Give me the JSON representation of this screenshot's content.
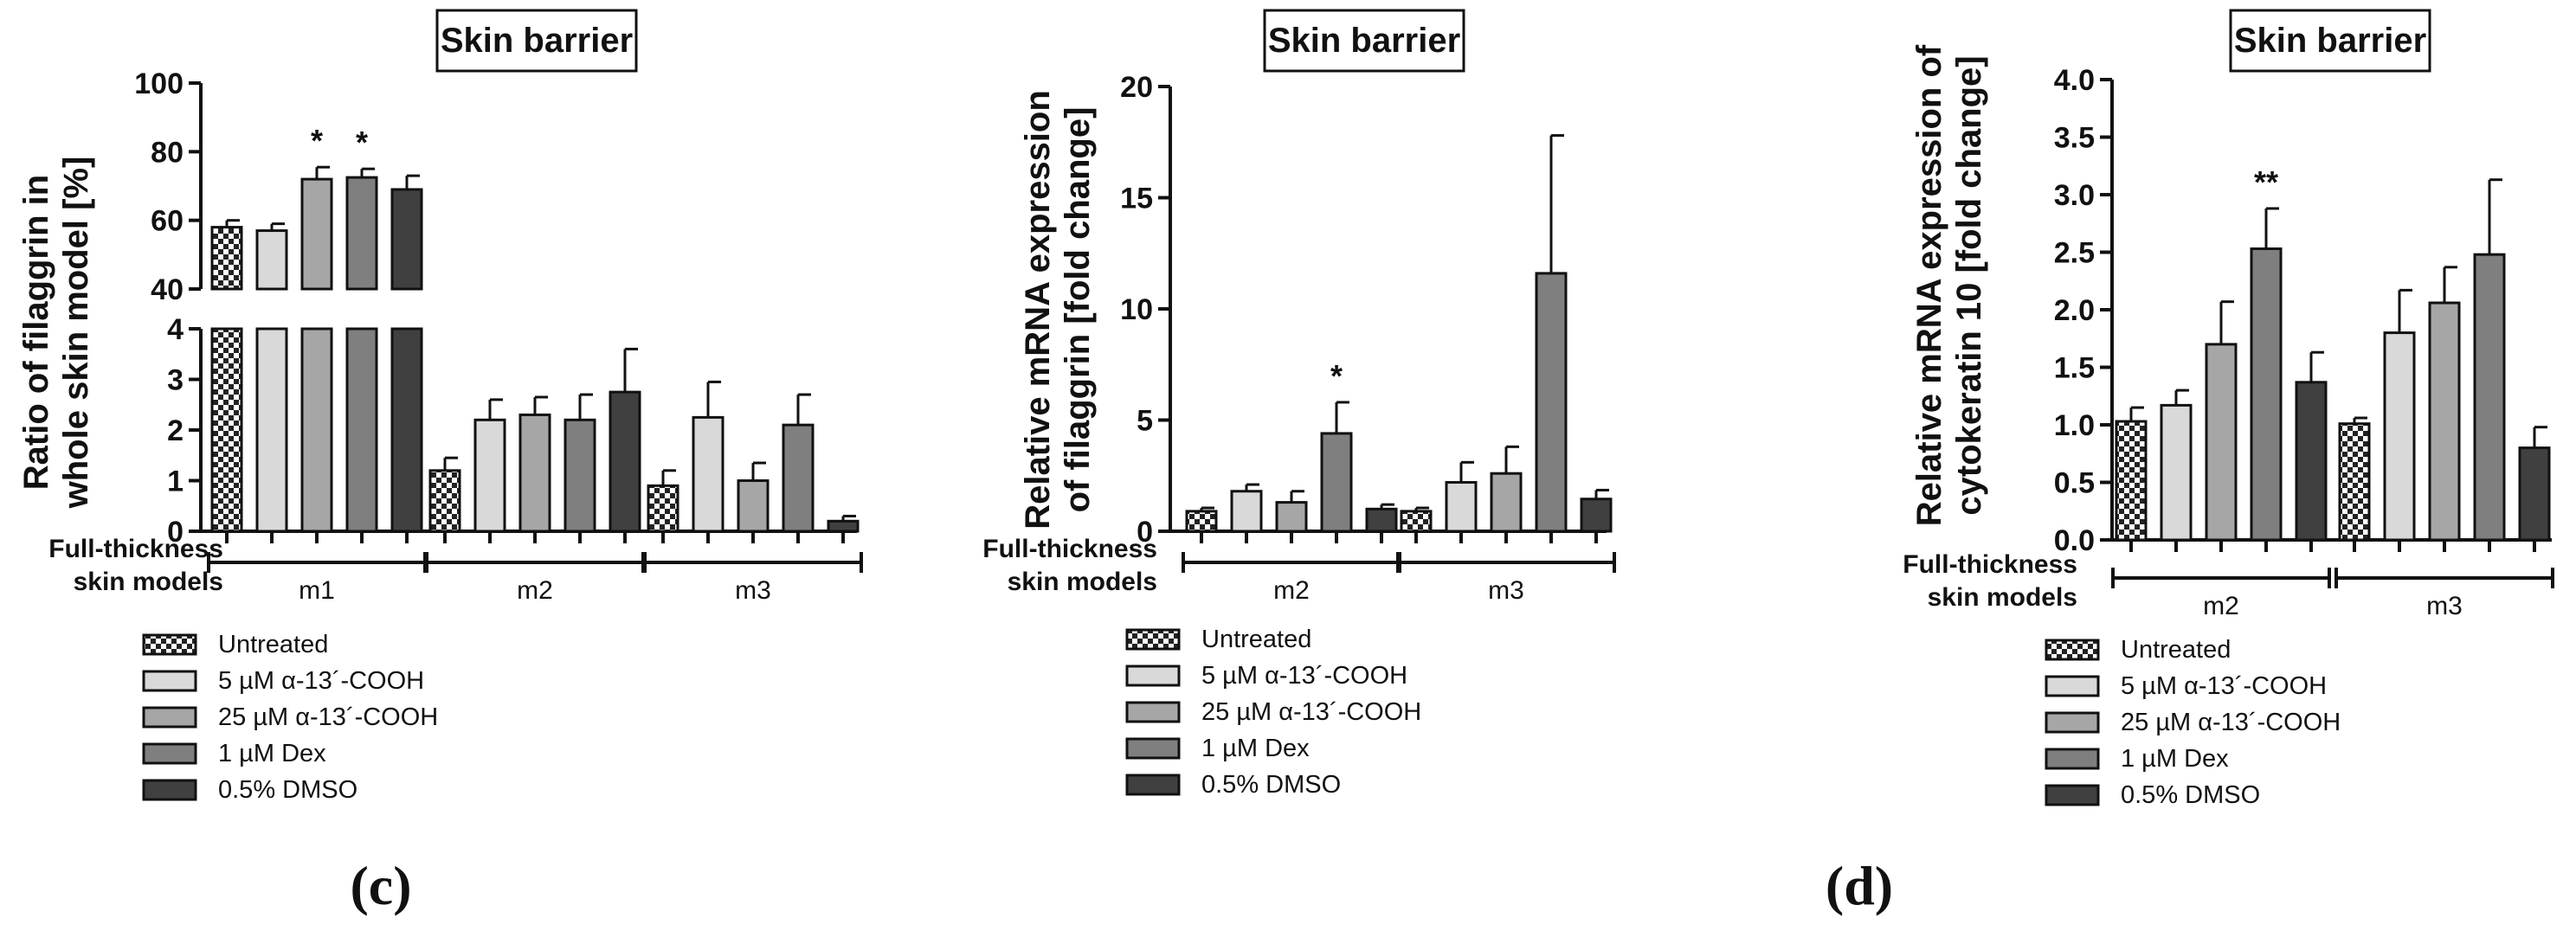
{
  "panel_labels": {
    "c": "(c)",
    "d": "(d)"
  },
  "legend": {
    "entries": [
      "Untreated",
      "5 µM α-13´-COOH",
      "25 µM α-13´-COOH",
      "1 µM Dex",
      "0.5% DMSO"
    ]
  },
  "colors": {
    "untreated": "checkerboard",
    "alpha5": "#d9d9d9",
    "alpha25": "#a6a6a6",
    "dex": "#7f7f7f",
    "dmso": "#404040",
    "stroke": "#111111"
  },
  "chart_data": [
    {
      "type": "bar",
      "title": "Skin barrier",
      "ylabel_line1": "Ratio of filaggrin in",
      "ylabel_line2": "whole skin model  [%]",
      "xlabel_line1": "Full-thickness",
      "xlabel_line2": "skin models",
      "axis_break": true,
      "ylim_lower": [
        0,
        4
      ],
      "ylim_upper": [
        40,
        100
      ],
      "yticks_lower": [
        0,
        1,
        2,
        3,
        4
      ],
      "yticks_upper": [
        40,
        60,
        80,
        100
      ],
      "categories": [
        "m1",
        "m2",
        "m3"
      ],
      "series": [
        {
          "name": "Untreated",
          "values": [
            58,
            1.2,
            0.9
          ],
          "errors": [
            2,
            0.25,
            0.3
          ],
          "sig": [
            "",
            "",
            ""
          ]
        },
        {
          "name": "5 µM α-13´-COOH",
          "values": [
            57,
            2.2,
            2.25
          ],
          "errors": [
            2,
            0.4,
            0.7
          ],
          "sig": [
            "",
            "",
            ""
          ]
        },
        {
          "name": "25 µM α-13´-COOH",
          "values": [
            72,
            2.3,
            1.0
          ],
          "errors": [
            3.5,
            0.35,
            0.35
          ],
          "sig": [
            "*",
            "",
            ""
          ]
        },
        {
          "name": "1 µM Dex",
          "values": [
            72.5,
            2.2,
            2.1
          ],
          "errors": [
            2.5,
            0.5,
            0.6
          ],
          "sig": [
            "*",
            "",
            ""
          ]
        },
        {
          "name": "0.5% DMSO",
          "values": [
            69,
            2.75,
            0.2
          ],
          "errors": [
            4,
            0.85,
            0.1
          ],
          "sig": [
            "",
            "",
            ""
          ]
        }
      ]
    },
    {
      "type": "bar",
      "title": "Skin barrier",
      "ylabel_line1": "Relative mRNA expression",
      "ylabel_line2": "of filaggrin [fold change]",
      "xlabel_line1": "Full-thickness",
      "xlabel_line2": "skin models",
      "ylim": [
        0,
        20
      ],
      "yticks": [
        0,
        5,
        10,
        15,
        20
      ],
      "categories": [
        "m2",
        "m3"
      ],
      "series": [
        {
          "name": "Untreated",
          "values": [
            0.9,
            0.9
          ],
          "errors": [
            0.15,
            0.15
          ],
          "sig": [
            "",
            ""
          ]
        },
        {
          "name": "5 µM α-13´-COOH",
          "values": [
            1.8,
            2.2
          ],
          "errors": [
            0.3,
            0.9
          ],
          "sig": [
            "",
            ""
          ]
        },
        {
          "name": "25 µM α-13´-COOH",
          "values": [
            1.3,
            2.6
          ],
          "errors": [
            0.5,
            1.2
          ],
          "sig": [
            "",
            ""
          ]
        },
        {
          "name": "1 µM Dex",
          "values": [
            4.4,
            11.6
          ],
          "errors": [
            1.4,
            6.2
          ],
          "sig": [
            "*",
            ""
          ]
        },
        {
          "name": "0.5% DMSO",
          "values": [
            1.0,
            1.45
          ],
          "errors": [
            0.2,
            0.4
          ],
          "sig": [
            "",
            ""
          ]
        }
      ]
    },
    {
      "type": "bar",
      "title": "Skin barrier",
      "ylabel_line1": "Relative mRNA expression of",
      "ylabel_line2": "cytokeratin 10 [fold change]",
      "xlabel_line1": "Full-thickness",
      "xlabel_line2": "skin models",
      "ylim": [
        0,
        4
      ],
      "yticks": [
        "0.0",
        "0.5",
        "1.0",
        "1.5",
        "2.0",
        "2.5",
        "3.0",
        "3.5",
        "4.0"
      ],
      "categories": [
        "m2",
        "m3"
      ],
      "series": [
        {
          "name": "Untreated",
          "values": [
            1.03,
            1.01
          ],
          "errors": [
            0.12,
            0.05
          ],
          "sig": [
            "",
            ""
          ]
        },
        {
          "name": "5 µM α-13´-COOH",
          "values": [
            1.17,
            1.8
          ],
          "errors": [
            0.13,
            0.37
          ],
          "sig": [
            "",
            ""
          ]
        },
        {
          "name": "25 µM α-13´-COOH",
          "values": [
            1.7,
            2.06
          ],
          "errors": [
            0.37,
            0.31
          ],
          "sig": [
            "",
            ""
          ]
        },
        {
          "name": "1 µM Dex",
          "values": [
            2.53,
            2.48
          ],
          "errors": [
            0.35,
            0.65
          ],
          "sig": [
            "**",
            ""
          ]
        },
        {
          "name": "0.5% DMSO",
          "values": [
            1.37,
            0.8
          ],
          "errors": [
            0.26,
            0.18
          ],
          "sig": [
            "",
            ""
          ]
        }
      ]
    }
  ]
}
